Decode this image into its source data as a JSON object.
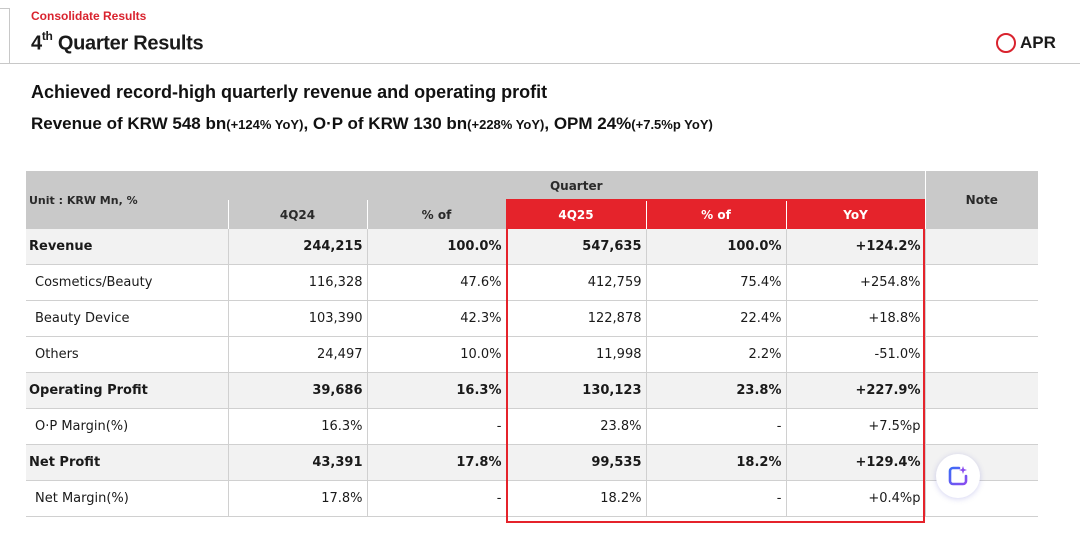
{
  "header": {
    "section_label": "Consolidate Results",
    "title_prefix": "4",
    "title_sup": "th",
    "title_rest": " Quarter Results",
    "brand": "APR"
  },
  "headlines": {
    "line1": "Achieved record-high quarterly revenue and operating profit",
    "line2_parts": {
      "a": "Revenue of KRW 548 bn",
      "b": "(+124% YoY)",
      "c": ", O·P of KRW 130 bn",
      "d": "(+228% YoY)",
      "e": ", OPM 24%",
      "f": "(+7.5%p YoY)"
    }
  },
  "table": {
    "unit_label": "Unit : KRW Mn, %",
    "group_label": "Quarter",
    "note_label": "Note",
    "columns": [
      "4Q24",
      "% of",
      "4Q25",
      "% of",
      "YoY"
    ],
    "rows": [
      {
        "label": "Revenue",
        "values": [
          "244,215",
          "100.0%",
          "547,635",
          "100.0%",
          "+124.2%"
        ],
        "note": ""
      },
      {
        "label": "Cosmetics/Beauty",
        "values": [
          "116,328",
          "47.6%",
          "412,759",
          "75.4%",
          "+254.8%"
        ],
        "note": ""
      },
      {
        "label": "Beauty Device",
        "values": [
          "103,390",
          "42.3%",
          "122,878",
          "22.4%",
          "+18.8%"
        ],
        "note": ""
      },
      {
        "label": "Others",
        "values": [
          "24,497",
          "10.0%",
          "11,998",
          "2.2%",
          "-51.0%"
        ],
        "note": ""
      },
      {
        "label": "Operating Profit",
        "values": [
          "39,686",
          "16.3%",
          "130,123",
          "23.8%",
          "+227.9%"
        ],
        "note": ""
      },
      {
        "label": "O·P Margin(%)",
        "values": [
          "16.3%",
          "-",
          "23.8%",
          "-",
          "+7.5%p"
        ],
        "note": ""
      },
      {
        "label": "Net Profit",
        "values": [
          "43,391",
          "17.8%",
          "99,535",
          "18.2%",
          "+129.4%"
        ],
        "note": ""
      },
      {
        "label": "Net Margin(%)",
        "values": [
          "17.8%",
          "-",
          "18.2%",
          "-",
          "+0.4%p"
        ],
        "note": ""
      }
    ]
  },
  "colors": {
    "accent_red": "#e5232b",
    "header_gray": "#c9c9c9"
  },
  "icons": {
    "brand": "ring-logo-icon",
    "floating": "ai-assistant-icon"
  }
}
